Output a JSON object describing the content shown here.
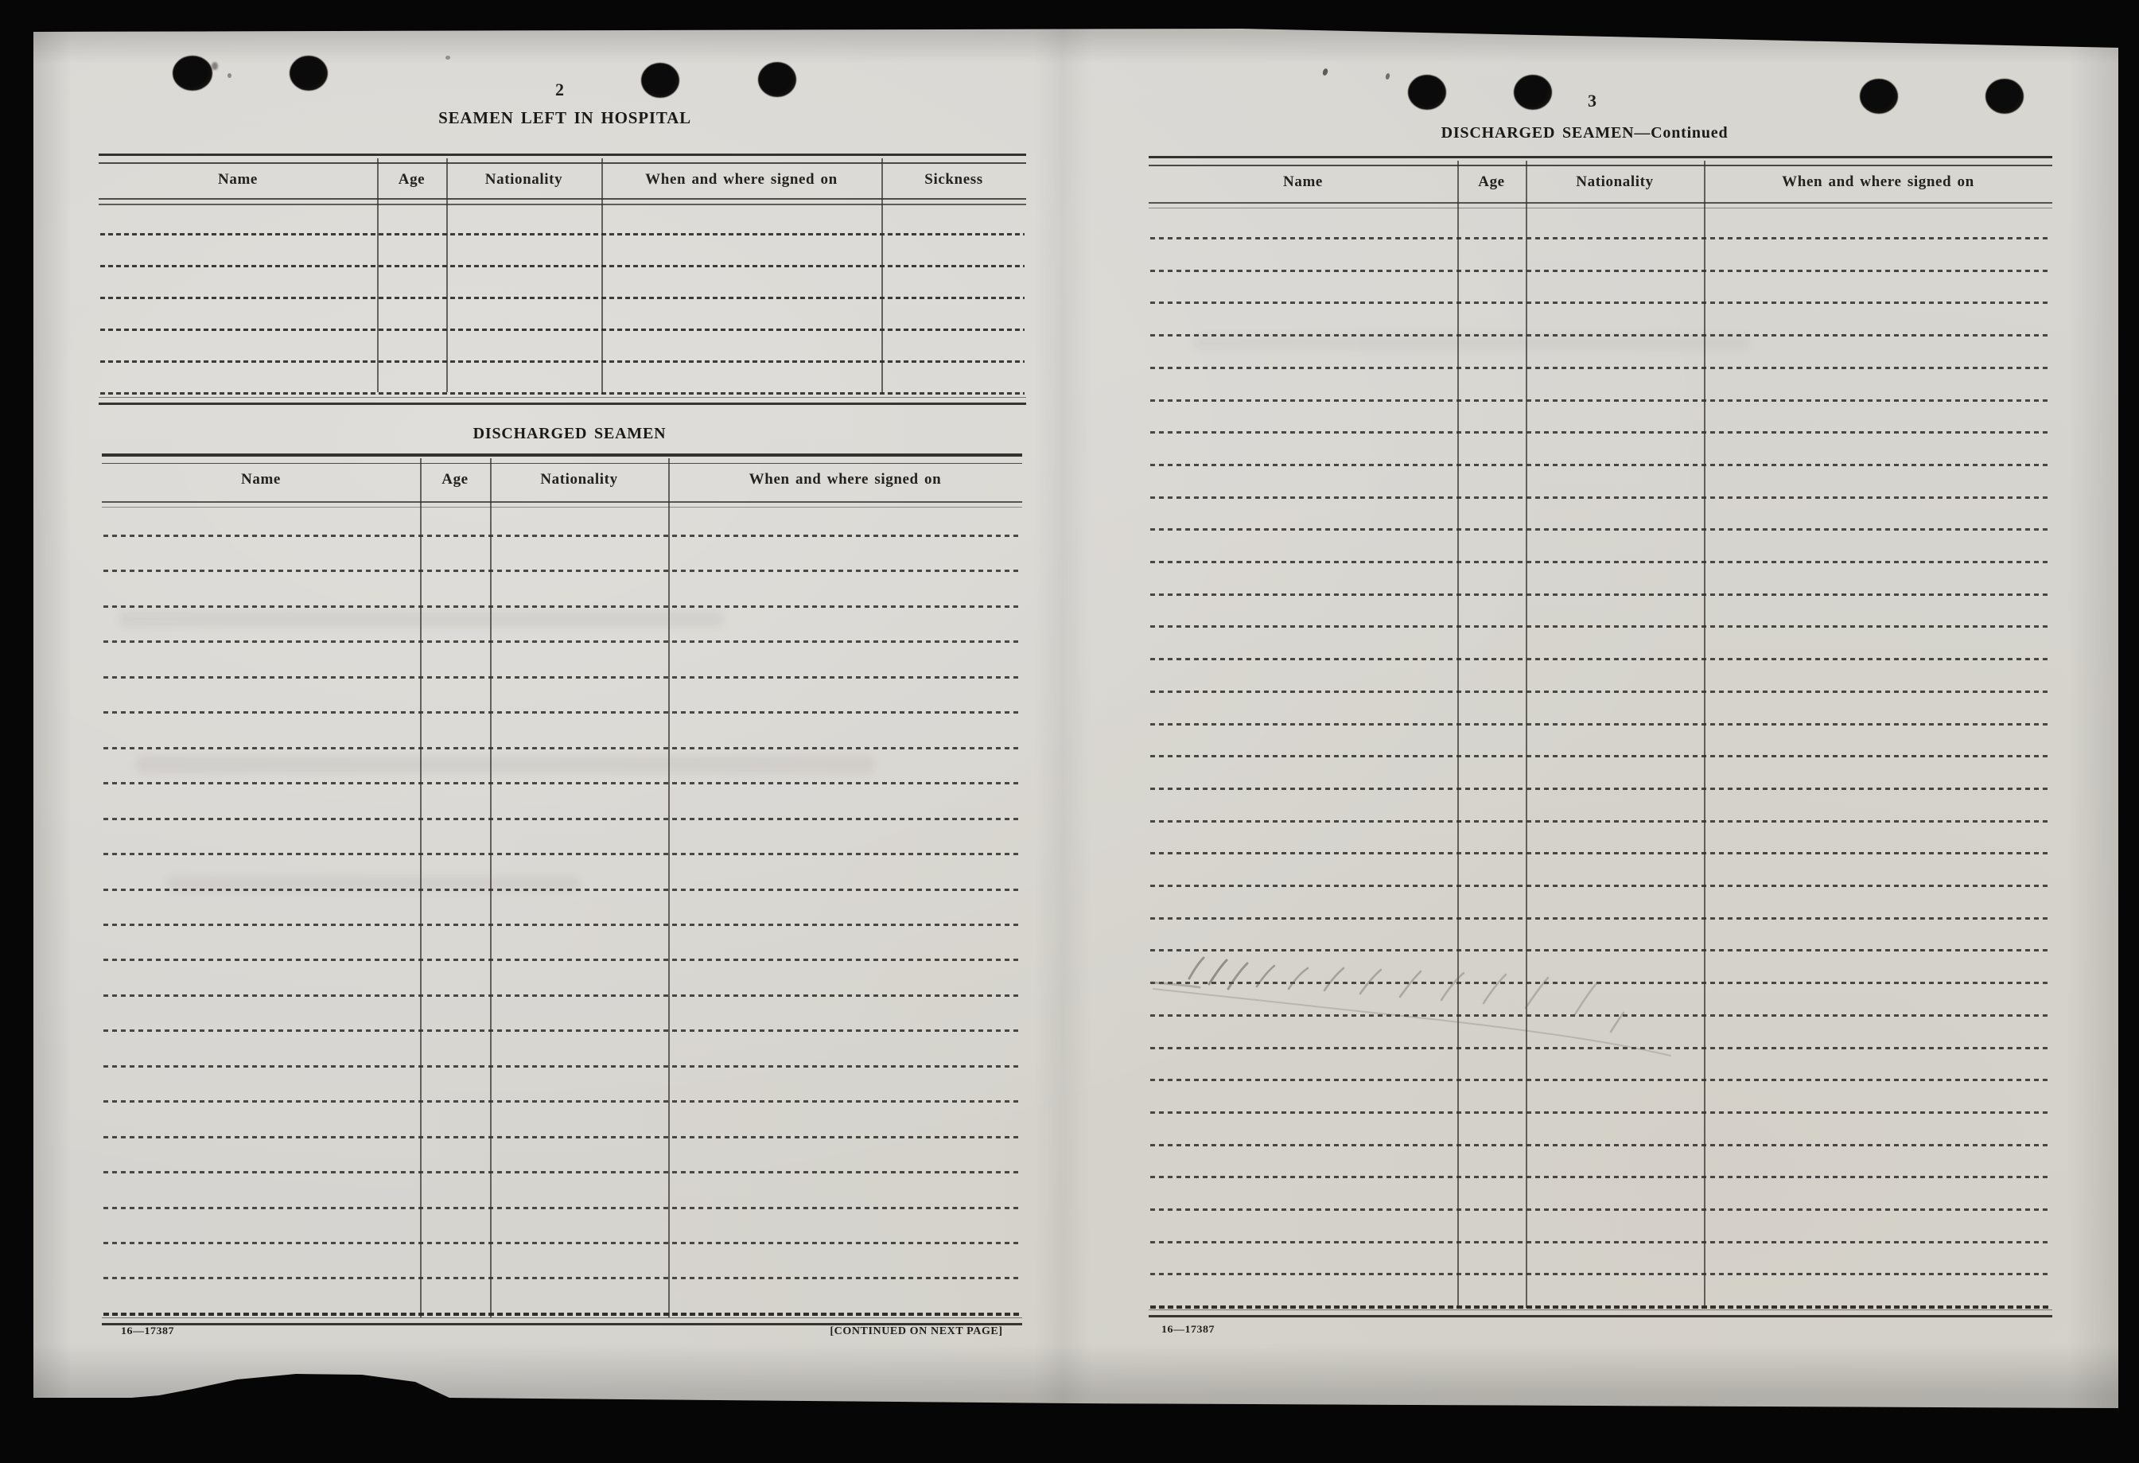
{
  "colors": {
    "background": "#060606",
    "paper": "#d8d6d1",
    "ink": "#23211d"
  },
  "left_page": {
    "page_number": "2",
    "hospital_table": {
      "title": "SEAMEN LEFT IN HOSPITAL",
      "columns": [
        "Name",
        "Age",
        "Nationality",
        "When and where signed on",
        "Sickness"
      ],
      "rows": 6
    },
    "discharged_table": {
      "title": "DISCHARGED SEAMEN",
      "columns": [
        "Name",
        "Age",
        "Nationality",
        "When and where signed on"
      ],
      "rows": 23
    },
    "footer": {
      "form_number": "16—17387",
      "continued_note": "[CONTINUED ON NEXT PAGE]"
    }
  },
  "right_page": {
    "page_number": "3",
    "discharged_table_continued": {
      "title": "DISCHARGED SEAMEN—Continued",
      "columns": [
        "Name",
        "Age",
        "Nationality",
        "When and where signed on"
      ],
      "rows": 34
    },
    "footer": {
      "form_number": "16—17387"
    }
  }
}
